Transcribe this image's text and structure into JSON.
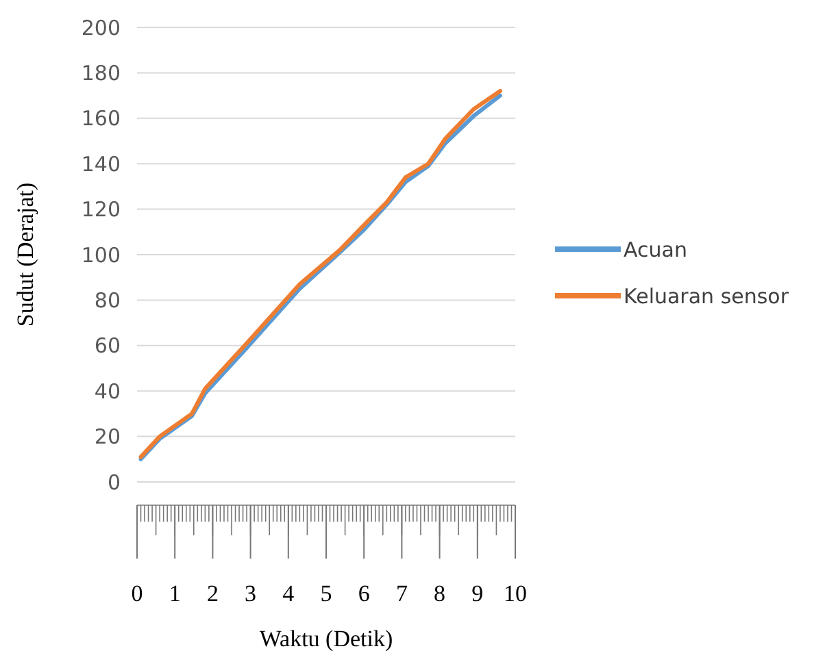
{
  "chart_data": {
    "type": "line",
    "xlabel": "Waktu (Detik)",
    "ylabel": "Sudut (Derajat)",
    "xlim": [
      0,
      10
    ],
    "xticks": [
      0,
      1,
      2,
      3,
      4,
      5,
      6,
      7,
      8,
      9,
      10
    ],
    "ylim": [
      0,
      200
    ],
    "yticks": [
      0,
      20,
      40,
      60,
      80,
      100,
      120,
      140,
      160,
      180,
      200
    ],
    "grid": "y",
    "legend": "right",
    "marker": "none",
    "line_style": "solid",
    "series": [
      {
        "name": "Acuan",
        "color": "#5b9bd5",
        "x": [
          0.1,
          0.6,
          1.45,
          1.8,
          2.9,
          4.3,
          5.36,
          6.0,
          6.6,
          7.1,
          7.7,
          8.15,
          8.9,
          9.6
        ],
        "values": [
          10,
          19,
          29,
          39,
          59,
          85,
          101,
          111,
          122,
          132,
          139,
          149,
          161,
          170
        ]
      },
      {
        "name": "Keluaran sensor",
        "color": "#ed7d31",
        "x": [
          0.1,
          0.6,
          1.45,
          1.8,
          2.9,
          4.3,
          5.36,
          6.0,
          6.6,
          7.1,
          7.7,
          8.15,
          8.9,
          9.6
        ],
        "values": [
          11,
          20,
          30,
          41,
          61,
          87,
          102,
          113,
          123,
          134,
          140,
          151,
          164,
          172
        ]
      }
    ]
  }
}
